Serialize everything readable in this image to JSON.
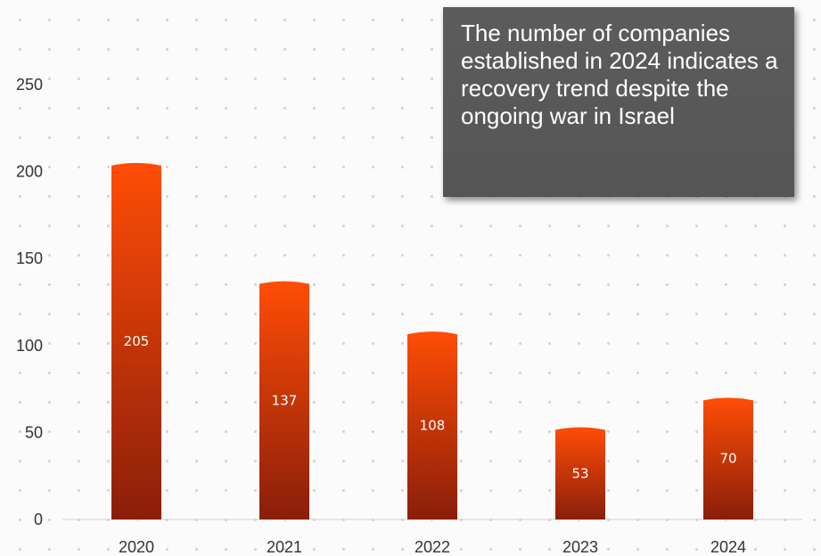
{
  "colors": {
    "bar_top": "#ff4d06",
    "bar_bottom": "#8a1e0a",
    "callout_bg": "#555555"
  },
  "callout": {
    "text": "The number of companies established in 2024 indicates a recovery trend despite the ongoing war in Israel"
  },
  "chart_data": {
    "type": "bar",
    "categories": [
      "2020",
      "2021",
      "2022",
      "2023",
      "2024"
    ],
    "values": [
      205,
      137,
      108,
      53,
      70
    ],
    "title": "",
    "xlabel": "",
    "ylabel": "",
    "ylim": [
      0,
      250
    ],
    "yticks": [
      0,
      50,
      100,
      150,
      200,
      250
    ],
    "data_labels": true,
    "grid": false,
    "legend": "none"
  }
}
